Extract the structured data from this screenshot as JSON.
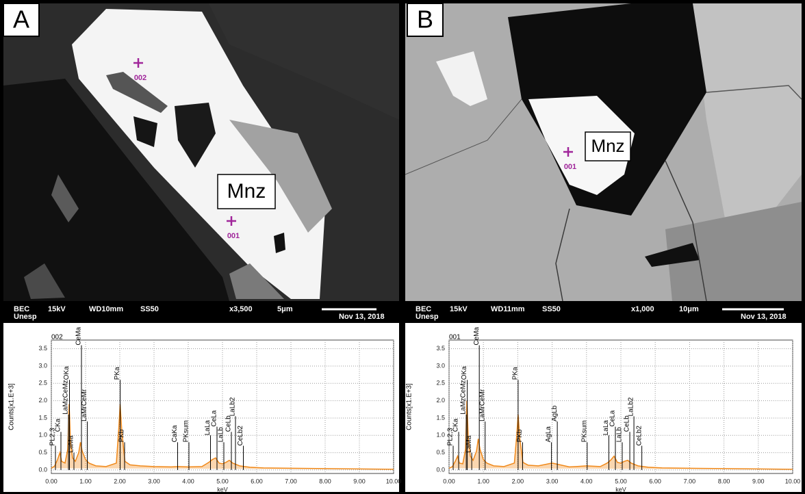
{
  "panels": [
    {
      "letter": "A",
      "mineral": "Mnz",
      "points": [
        {
          "id": "002"
        },
        {
          "id": "001"
        }
      ],
      "info": {
        "detector": "BEC",
        "institution": "Unesp",
        "voltage": "15kV",
        "working_distance": "WD10mm",
        "spot": "SS50",
        "magnification": "x3,500",
        "scale": "5μm",
        "date": "Nov 13, 2018"
      }
    },
    {
      "letter": "B",
      "mineral": "Mnz",
      "points": [
        {
          "id": "001"
        }
      ],
      "info": {
        "detector": "BEC",
        "institution": "Unesp",
        "voltage": "15kV",
        "working_distance": "WD11mm",
        "spot": "SS50",
        "magnification": "x1,000",
        "scale": "10μm",
        "date": "Nov 13, 2018"
      }
    }
  ],
  "chart_data": [
    {
      "type": "line",
      "title": "002",
      "xlabel": "keV",
      "ylabel": "Counts[x1.E+3]",
      "grid": true,
      "x": [
        0,
        0.1,
        0.18,
        0.25,
        0.3,
        0.4,
        0.48,
        0.52,
        0.56,
        0.62,
        0.7,
        0.8,
        0.85,
        0.9,
        1.0,
        1.1,
        1.3,
        1.6,
        1.9,
        1.97,
        2.01,
        2.06,
        2.15,
        2.3,
        2.6,
        3.0,
        3.5,
        3.7,
        4.0,
        4.4,
        4.6,
        4.7,
        4.8,
        4.9,
        5.0,
        5.1,
        5.2,
        5.3,
        5.5,
        5.8,
        6.2,
        7,
        8,
        9,
        10
      ],
      "series": [
        {
          "color": "#f0891a",
          "values": [
            0.05,
            0.12,
            0.3,
            0.5,
            0.25,
            0.2,
            0.6,
            1.9,
            0.8,
            0.35,
            0.25,
            0.5,
            0.8,
            0.55,
            0.3,
            0.2,
            0.12,
            0.1,
            0.2,
            1.2,
            1.9,
            1.1,
            0.25,
            0.15,
            0.12,
            0.1,
            0.09,
            0.1,
            0.09,
            0.1,
            0.22,
            0.3,
            0.35,
            0.2,
            0.18,
            0.22,
            0.28,
            0.2,
            0.12,
            0.08,
            0.06,
            0.05,
            0.04,
            0.03,
            0.02
          ]
        }
      ],
      "peaks": [
        {
          "label": "PL2,3",
          "x": 0.12,
          "y": 0.7
        },
        {
          "label": "CKa",
          "x": 0.28,
          "y": 1.1
        },
        {
          "label": "LaMzCeMz",
          "x": 0.5,
          "y": 1.6
        },
        {
          "label": "OKa",
          "x": 0.53,
          "y": 2.6
        },
        {
          "label": "LaMa",
          "x": 0.66,
          "y": 0.5
        },
        {
          "label": "CeMa",
          "x": 0.88,
          "y": 3.6
        },
        {
          "label": "LaMrCeMr",
          "x": 1.05,
          "y": 1.4
        },
        {
          "label": "PKa",
          "x": 2.01,
          "y": 2.6
        },
        {
          "label": "PKb",
          "x": 2.14,
          "y": 0.8
        },
        {
          "label": "CaKa",
          "x": 3.69,
          "y": 0.8
        },
        {
          "label": "PKsum",
          "x": 4.02,
          "y": 0.8
        },
        {
          "label": "LaLa",
          "x": 4.65,
          "y": 1.0
        },
        {
          "label": "CeLa",
          "x": 4.84,
          "y": 1.25
        },
        {
          "label": "LaLb",
          "x": 5.04,
          "y": 0.8
        },
        {
          "label": "CeLb",
          "x": 5.26,
          "y": 1.1
        },
        {
          "label": "LaLb2",
          "x": 5.38,
          "y": 1.55
        },
        {
          "label": "CeLb2",
          "x": 5.61,
          "y": 0.7
        }
      ],
      "xlim": [
        0,
        10
      ],
      "ylim": [
        -0.1,
        3.75
      ],
      "xticks": [
        {
          "value": 0,
          "label": "0.00"
        },
        {
          "value": 1,
          "label": "1.00"
        },
        {
          "value": 2,
          "label": "2.00"
        },
        {
          "value": 3,
          "label": "3.00"
        },
        {
          "value": 4,
          "label": "4.00"
        },
        {
          "value": 5,
          "label": "5.00"
        },
        {
          "value": 6,
          "label": "6.00"
        },
        {
          "value": 7,
          "label": "7.00"
        },
        {
          "value": 8,
          "label": "8.00"
        },
        {
          "value": 9,
          "label": "9.00"
        },
        {
          "value": 10,
          "label": "10.00"
        }
      ],
      "yticks": [
        {
          "value": 0,
          "label": "0.0"
        },
        0.5,
        {
          "value": 1,
          "label": "1.0"
        },
        1.5,
        {
          "value": 2,
          "label": "2.0"
        },
        2.5,
        {
          "value": 3,
          "label": "3.0"
        },
        3.5
      ]
    },
    {
      "type": "line",
      "title": "001",
      "xlabel": "keV",
      "ylabel": "Counts[x1.E+3]",
      "grid": true,
      "x": [
        0,
        0.1,
        0.18,
        0.25,
        0.3,
        0.4,
        0.48,
        0.52,
        0.56,
        0.62,
        0.7,
        0.8,
        0.85,
        0.9,
        1.0,
        1.1,
        1.3,
        1.6,
        1.9,
        1.97,
        2.01,
        2.06,
        2.15,
        2.3,
        2.6,
        3.0,
        3.5,
        3.7,
        4.0,
        4.4,
        4.6,
        4.7,
        4.8,
        4.9,
        5.0,
        5.1,
        5.2,
        5.3,
        5.5,
        5.8,
        6.2,
        7,
        8,
        9,
        10
      ],
      "series": [
        {
          "color": "#f0891a",
          "values": [
            0.05,
            0.1,
            0.25,
            0.4,
            0.2,
            0.18,
            0.6,
            2.0,
            0.9,
            0.4,
            0.28,
            0.55,
            0.9,
            0.6,
            0.3,
            0.2,
            0.12,
            0.1,
            0.2,
            1.0,
            1.6,
            0.9,
            0.22,
            0.14,
            0.12,
            0.2,
            0.09,
            0.1,
            0.12,
            0.1,
            0.2,
            0.28,
            0.4,
            0.22,
            0.2,
            0.25,
            0.28,
            0.2,
            0.12,
            0.08,
            0.06,
            0.05,
            0.04,
            0.03,
            0.02
          ]
        }
      ],
      "peaks": [
        {
          "label": "PL2,3",
          "x": 0.12,
          "y": 0.7
        },
        {
          "label": "CKa",
          "x": 0.28,
          "y": 1.1
        },
        {
          "label": "LaMzCeMz",
          "x": 0.5,
          "y": 1.6
        },
        {
          "label": "OKa",
          "x": 0.53,
          "y": 2.6
        },
        {
          "label": "LaMa",
          "x": 0.66,
          "y": 0.5
        },
        {
          "label": "CeMa",
          "x": 0.88,
          "y": 3.6
        },
        {
          "label": "LaMrCeMr",
          "x": 1.05,
          "y": 1.4
        },
        {
          "label": "PKa",
          "x": 2.01,
          "y": 2.6
        },
        {
          "label": "PKb",
          "x": 2.14,
          "y": 0.8
        },
        {
          "label": "AgLa",
          "x": 2.98,
          "y": 0.8
        },
        {
          "label": "AgLb",
          "x": 3.15,
          "y": 1.4
        },
        {
          "label": "PKsum",
          "x": 4.02,
          "y": 0.8
        },
        {
          "label": "LaLa",
          "x": 4.65,
          "y": 1.0
        },
        {
          "label": "CeLa",
          "x": 4.84,
          "y": 1.25
        },
        {
          "label": "LaLb",
          "x": 5.04,
          "y": 0.8
        },
        {
          "label": "CeLb",
          "x": 5.26,
          "y": 1.1
        },
        {
          "label": "LaLb2",
          "x": 5.38,
          "y": 1.55
        },
        {
          "label": "CeLb2",
          "x": 5.61,
          "y": 0.7
        }
      ],
      "xlim": [
        0,
        10
      ],
      "ylim": [
        -0.1,
        3.75
      ],
      "xticks": [
        {
          "value": 0,
          "label": "0.00"
        },
        {
          "value": 1,
          "label": "1.00"
        },
        {
          "value": 2,
          "label": "2.00"
        },
        {
          "value": 3,
          "label": "3.00"
        },
        {
          "value": 4,
          "label": "4.00"
        },
        {
          "value": 5,
          "label": "5.00"
        },
        {
          "value": 6,
          "label": "6.00"
        },
        {
          "value": 7,
          "label": "7.00"
        },
        {
          "value": 8,
          "label": "8.00"
        },
        {
          "value": 9,
          "label": "9.00"
        },
        {
          "value": 10,
          "label": "10.00"
        }
      ],
      "yticks": [
        {
          "value": 0,
          "label": "0.0"
        },
        0.5,
        {
          "value": 1,
          "label": "1.0"
        },
        1.5,
        {
          "value": 2,
          "label": "2.0"
        },
        2.5,
        {
          "value": 3,
          "label": "3.0"
        },
        3.5
      ]
    }
  ]
}
